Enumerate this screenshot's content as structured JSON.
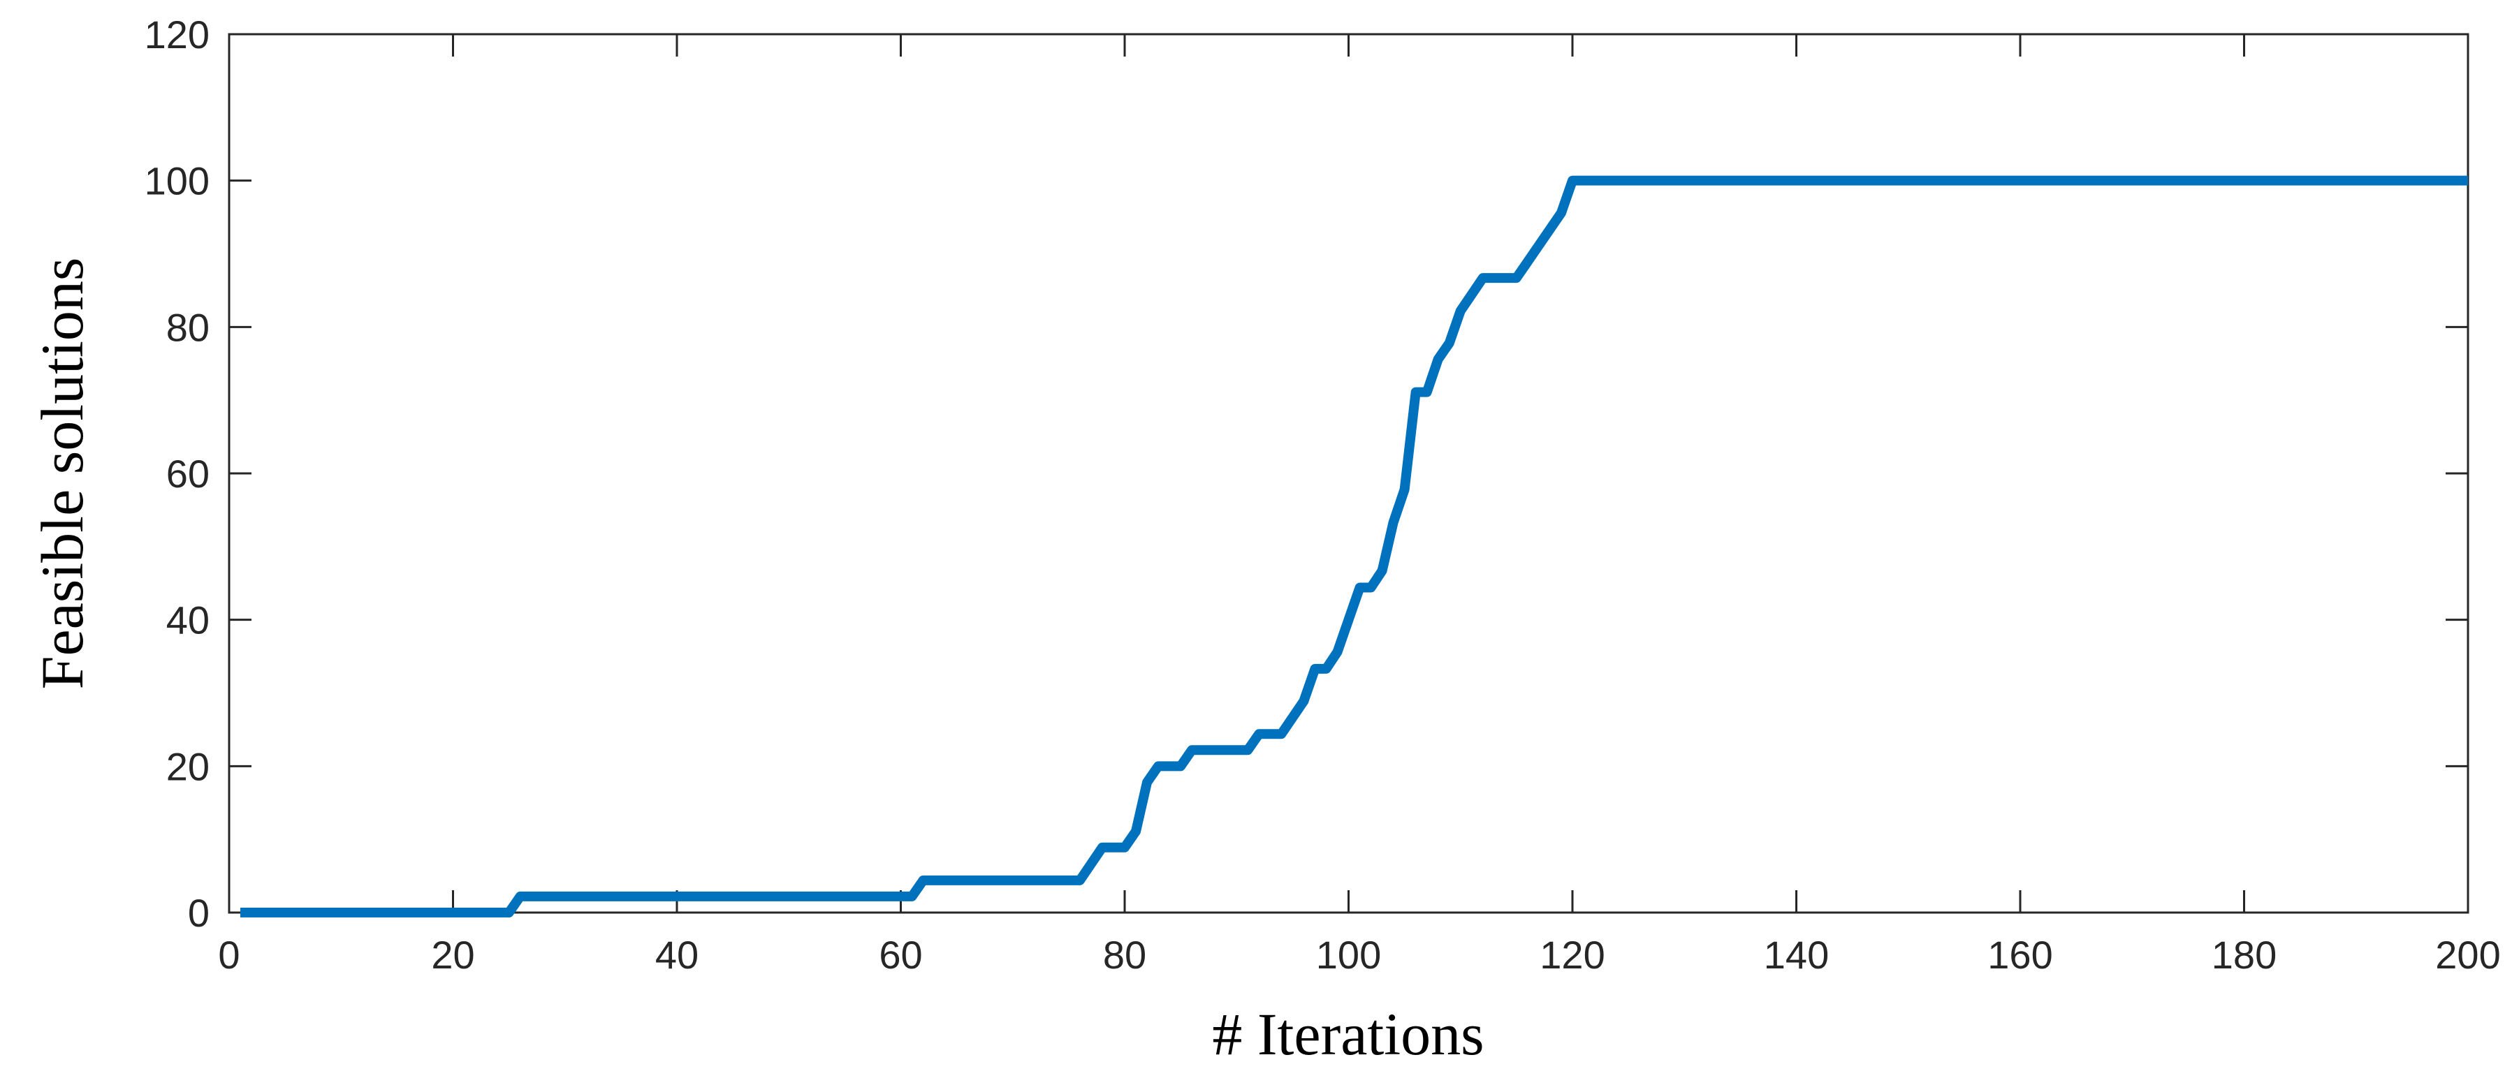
{
  "chart_data": {
    "type": "line",
    "xlabel": "# Iterations",
    "ylabel": "Feasible solutions",
    "xlim": [
      0,
      200
    ],
    "ylim": [
      0,
      120
    ],
    "xticks": [
      0,
      20,
      40,
      60,
      80,
      100,
      120,
      140,
      160,
      180,
      200
    ],
    "yticks": [
      0,
      20,
      40,
      60,
      80,
      100,
      120
    ],
    "series": [
      {
        "color": "#0072bd",
        "x": [
          1,
          25,
          26,
          61,
          62,
          76,
          78,
          80,
          81,
          82,
          83,
          85,
          86,
          91,
          92,
          94,
          96,
          97,
          98,
          99,
          100,
          101,
          102,
          103,
          104,
          105,
          106,
          107,
          108,
          109,
          110,
          112,
          115,
          119,
          120,
          200
        ],
        "values": [
          0,
          0,
          2.2,
          2.2,
          4.4,
          4.4,
          8.9,
          8.9,
          11.1,
          17.8,
          20,
          20,
          22.2,
          22.2,
          24.4,
          24.4,
          28.9,
          33.3,
          33.3,
          35.6,
          40,
          44.4,
          44.4,
          46.7,
          53.3,
          57.8,
          71.1,
          71.1,
          75.6,
          77.8,
          82.2,
          86.7,
          86.7,
          95.6,
          100,
          100
        ]
      }
    ]
  }
}
